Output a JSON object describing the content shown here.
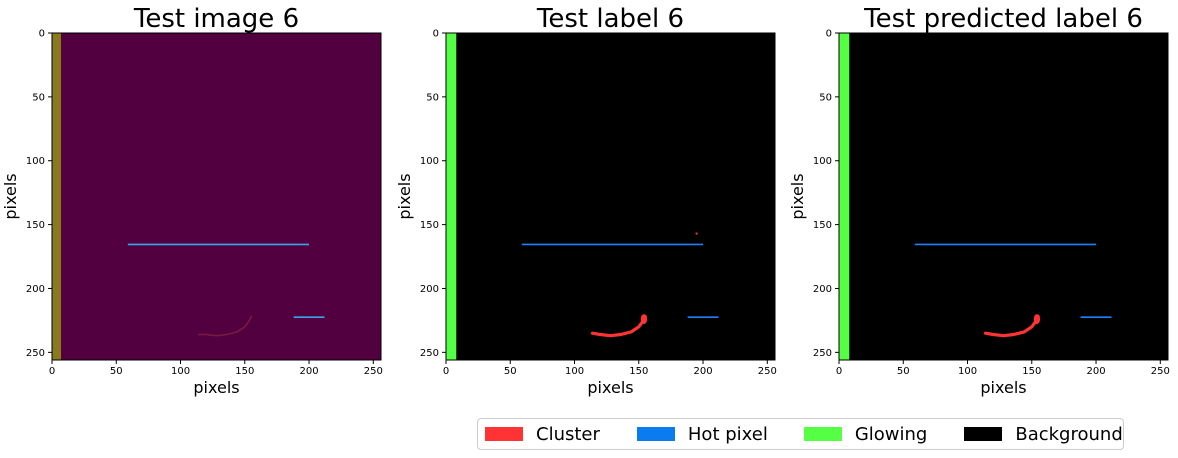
{
  "chart_data": [
    {
      "type": "heatmap",
      "title": "Test image 6",
      "xlabel": "pixels",
      "ylabel": "pixels",
      "xlim": [
        0,
        256
      ],
      "ylim": [
        256,
        0
      ],
      "xticks": [
        0,
        50,
        100,
        150,
        200,
        250
      ],
      "yticks": [
        0,
        50,
        100,
        150,
        200,
        250
      ],
      "background_color": "#520040",
      "regions": [
        {
          "class": "Glowing",
          "x": [
            0,
            7
          ],
          "y": [
            0,
            256
          ],
          "color": "#8a7a1f"
        },
        {
          "class": "Hot pixel",
          "x": [
            59,
            200
          ],
          "y": [
            165.5,
            165.5
          ],
          "color": "#3aa6e8"
        },
        {
          "class": "Hot pixel",
          "x": [
            188,
            212
          ],
          "y": [
            222.5,
            222.5
          ],
          "color": "#3aa6e8"
        },
        {
          "class": "Cluster",
          "points": [
            [
              114,
              236
            ],
            [
              120,
              236
            ],
            [
              128,
              237
            ],
            [
              136,
              236
            ],
            [
              144,
              234
            ],
            [
              150,
              230
            ],
            [
              153,
              226
            ],
            [
              155,
              222
            ]
          ],
          "color": "#7a1a40"
        }
      ]
    },
    {
      "type": "heatmap",
      "title": "Test label 6",
      "xlabel": "pixels",
      "ylabel": "pixels",
      "xlim": [
        0,
        256
      ],
      "ylim": [
        256,
        0
      ],
      "xticks": [
        0,
        50,
        100,
        150,
        200,
        250
      ],
      "yticks": [
        0,
        50,
        100,
        150,
        200,
        250
      ],
      "background_color": "#000000",
      "regions": [
        {
          "class": "Glowing",
          "x": [
            0,
            8
          ],
          "y": [
            0,
            256
          ],
          "color": "#55ff44"
        },
        {
          "class": "Hot pixel",
          "x": [
            59,
            200
          ],
          "y": [
            165.5,
            165.5
          ],
          "color": "#1e7fff"
        },
        {
          "class": "Hot pixel",
          "x": [
            188,
            212
          ],
          "y": [
            222.5,
            222.5
          ],
          "color": "#1e7fff"
        },
        {
          "class": "Cluster",
          "points": [
            [
              114,
              235
            ],
            [
              120,
              236
            ],
            [
              128,
              237
            ],
            [
              136,
              236
            ],
            [
              144,
              234
            ],
            [
              150,
              230
            ],
            [
              153,
              226
            ],
            [
              155,
              222
            ]
          ],
          "color": "#ff3333"
        },
        {
          "class": "Cluster",
          "points": [
            [
              195,
              157
            ]
          ],
          "color": "#ff3333"
        }
      ]
    },
    {
      "type": "heatmap",
      "title": "Test predicted label 6",
      "xlabel": "pixels",
      "ylabel": "pixels",
      "xlim": [
        0,
        256
      ],
      "ylim": [
        256,
        0
      ],
      "xticks": [
        0,
        50,
        100,
        150,
        200,
        250
      ],
      "yticks": [
        0,
        50,
        100,
        150,
        200,
        250
      ],
      "background_color": "#000000",
      "regions": [
        {
          "class": "Glowing",
          "x": [
            0,
            8
          ],
          "y": [
            0,
            256
          ],
          "color": "#55ff44"
        },
        {
          "class": "Hot pixel",
          "x": [
            59,
            200
          ],
          "y": [
            165.5,
            165.5
          ],
          "color": "#1e7fff"
        },
        {
          "class": "Hot pixel",
          "x": [
            188,
            212
          ],
          "y": [
            222.5,
            222.5
          ],
          "color": "#1e7fff"
        },
        {
          "class": "Cluster",
          "points": [
            [
              114,
              235
            ],
            [
              120,
              236
            ],
            [
              128,
              237
            ],
            [
              136,
              236
            ],
            [
              144,
              234
            ],
            [
              150,
              230
            ],
            [
              153,
              226
            ],
            [
              155,
              222
            ]
          ],
          "color": "#ff3333"
        }
      ]
    }
  ],
  "legend": {
    "placement": "bottom-right",
    "items": [
      {
        "label": "Cluster",
        "color": "#ff3333"
      },
      {
        "label": "Hot pixel",
        "color": "#0a7cf0"
      },
      {
        "label": "Glowing",
        "color": "#55ff44"
      },
      {
        "label": "Background",
        "color": "#000000"
      }
    ]
  }
}
